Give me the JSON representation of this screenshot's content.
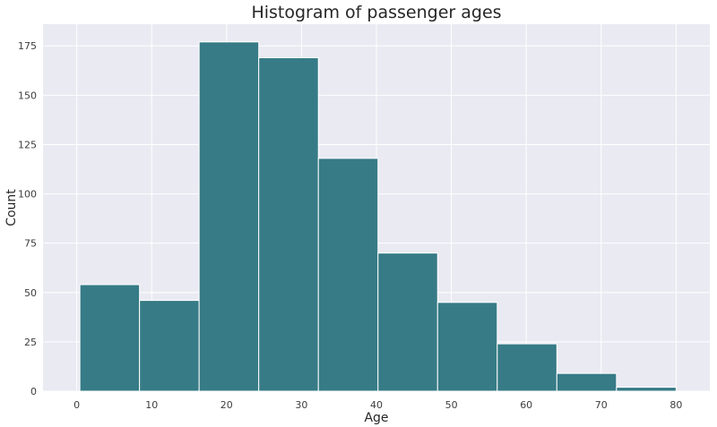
{
  "chart_data": {
    "type": "bar",
    "title": "Histogram of passenger ages",
    "xlabel": "Age",
    "ylabel": "Count",
    "bin_edges": [
      0.42,
      8.378,
      16.336,
      24.294,
      32.252,
      40.21,
      48.168,
      56.126,
      64.084,
      72.042,
      80.0
    ],
    "values": [
      54,
      46,
      177,
      169,
      118,
      70,
      45,
      24,
      9,
      2
    ],
    "xlim": [
      -4.5,
      84.5
    ],
    "ylim": [
      0,
      186
    ],
    "x_ticks": [
      0,
      10,
      20,
      30,
      40,
      50,
      60,
      70,
      80
    ],
    "y_ticks": [
      0,
      25,
      50,
      75,
      100,
      125,
      150,
      175
    ],
    "grid": true,
    "colors": {
      "bar": "#367b86",
      "plot_background": "#eaeaf2",
      "grid": "#ffffff",
      "bar_edge": "#ffffff"
    }
  }
}
